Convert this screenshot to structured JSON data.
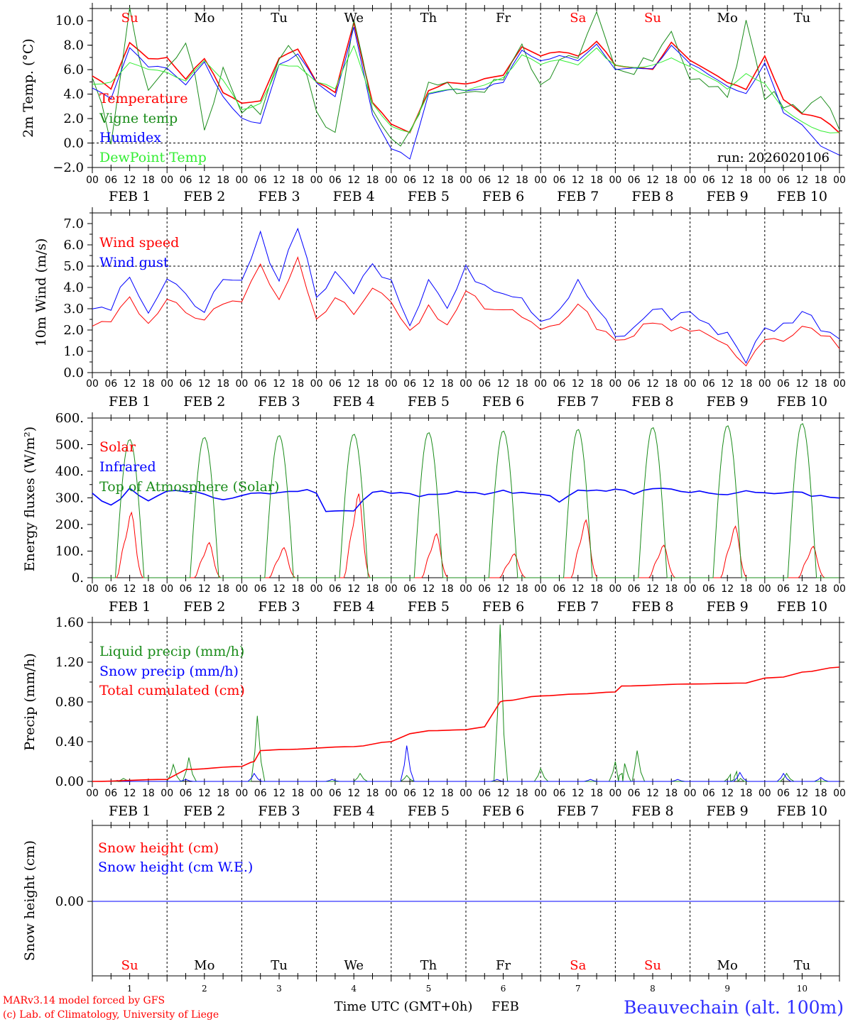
{
  "colors": {
    "red": "#ff0000",
    "green": "#1a8c1a",
    "blue": "#0000ff",
    "lime": "#33ee33",
    "axis": "#000000",
    "grid": "#000000",
    "title": "#3030ff"
  },
  "days": {
    "names": [
      "Su",
      "Mo",
      "Tu",
      "We",
      "Th",
      "Fr",
      "Sa",
      "Su",
      "Mo",
      "Tu"
    ],
    "weekend": [
      true,
      false,
      false,
      false,
      false,
      false,
      true,
      true,
      false,
      false
    ],
    "dates": [
      "FEB  1",
      "FEB  2",
      "FEB  3",
      "FEB  4",
      "FEB  5",
      "FEB  6",
      "FEB  7",
      "FEB  8",
      "FEB  9",
      "FEB 10"
    ],
    "numbers": [
      "1",
      "2",
      "3",
      "4",
      "5",
      "6",
      "7",
      "8",
      "9",
      "10"
    ],
    "hour_ticks": [
      "00",
      "06",
      "12",
      "18"
    ],
    "last_tick": "00"
  },
  "footer": {
    "credit_line1": "MARv3.14 model forced by GFS",
    "credit_line2": "(c) Lab. of Climatology, University of Liege",
    "xlabel": "Time UTC (GMT+0h)",
    "xunit": "FEB",
    "station": "Beauvechain (alt. 100m)"
  },
  "chart_data": [
    {
      "id": "temp",
      "type": "line",
      "ylabel": "2m Temp. (°C)",
      "ylim": [
        -2.0,
        11.0
      ],
      "yticks": [
        -2.0,
        0.0,
        2.0,
        4.0,
        6.0,
        8.0,
        10.0
      ],
      "ytick_labels": [
        "−2.0",
        "0.0",
        "2.0",
        "4.0",
        "6.0",
        "8.0",
        "10.0"
      ],
      "dashed_y": 0.0,
      "annotation": "run: 2026020106",
      "x_unit": "hours since FEB 1 00 UTC",
      "series": [
        {
          "name": "Temperature",
          "color": "red",
          "x": [
            0,
            6,
            12,
            18,
            24,
            30,
            36,
            42,
            48,
            54,
            60,
            66,
            72,
            78,
            84,
            90,
            96,
            102,
            108,
            114,
            120,
            126,
            132,
            138,
            144,
            150,
            156,
            162,
            168,
            174,
            180,
            186,
            192,
            198,
            204,
            210,
            216,
            222,
            228,
            234,
            240
          ],
          "values": [
            5.5,
            4.4,
            8.2,
            7.0,
            6.9,
            5.3,
            6.9,
            4.2,
            3.2,
            3.5,
            7.0,
            7.6,
            5.0,
            4.1,
            9.8,
            3.3,
            1.5,
            0.8,
            4.2,
            4.9,
            4.9,
            5.2,
            5.6,
            7.9,
            7.1,
            7.5,
            7.1,
            8.3,
            6.4,
            6.2,
            6.1,
            8.2,
            6.7,
            5.9,
            4.9,
            4.4,
            7.2,
            3.5,
            2.4,
            2.1,
            0.9
          ]
        },
        {
          "name": "Vigne temp",
          "color": "green",
          "x": [
            0,
            6,
            12,
            18,
            24,
            30,
            36,
            42,
            48,
            54,
            60,
            66,
            72,
            78,
            84,
            90,
            96,
            102,
            108,
            114,
            120,
            126,
            132,
            138,
            144,
            150,
            156,
            162,
            168,
            174,
            180,
            186,
            192,
            198,
            204,
            210,
            216,
            222,
            228,
            234,
            240
          ],
          "values": [
            4.8,
            0.5,
            10.5,
            4.5,
            6.0,
            8.7,
            1.2,
            6.2,
            3.0,
            2.6,
            7.5,
            7.4,
            2.7,
            0.8,
            9.8,
            3.3,
            0.5,
            0.3,
            4.8,
            4.4,
            4.3,
            4.3,
            5.3,
            8.5,
            4.5,
            7.2,
            6.5,
            10.2,
            5.8,
            5.6,
            7.0,
            9.6,
            5.0,
            5.0,
            3.1,
            10.0,
            4.2,
            3.0,
            2.4,
            4.4,
            0.6
          ]
        },
        {
          "name": "Humidex",
          "color": "blue",
          "x": [
            0,
            6,
            12,
            18,
            24,
            30,
            36,
            42,
            48,
            54,
            60,
            66,
            72,
            78,
            84,
            90,
            96,
            102,
            108,
            114,
            120,
            126,
            132,
            138,
            144,
            150,
            156,
            162,
            168,
            174,
            180,
            186,
            192,
            198,
            204,
            210,
            216,
            222,
            228,
            234,
            240
          ],
          "values": [
            4.5,
            3.7,
            7.8,
            6.3,
            6.1,
            4.8,
            6.6,
            3.8,
            2.0,
            1.6,
            6.5,
            7.2,
            5.0,
            3.7,
            9.5,
            2.3,
            -0.4,
            -1.3,
            4.0,
            4.4,
            4.3,
            4.5,
            5.0,
            7.6,
            6.7,
            7.1,
            6.8,
            8.1,
            6.1,
            6.1,
            6.0,
            8.0,
            6.5,
            5.6,
            4.7,
            4.0,
            6.6,
            2.4,
            1.4,
            -0.3,
            -1.0
          ]
        },
        {
          "name": "DewPoint Temp",
          "color": "lime",
          "x": [
            0,
            6,
            12,
            18,
            24,
            30,
            36,
            42,
            48,
            54,
            60,
            66,
            72,
            78,
            84,
            90,
            96,
            102,
            108,
            114,
            120,
            126,
            132,
            138,
            144,
            150,
            156,
            162,
            168,
            174,
            180,
            186,
            192,
            198,
            204,
            210,
            216,
            222,
            228,
            234,
            240
          ],
          "values": [
            4.8,
            4.9,
            6.6,
            6.0,
            5.8,
            5.0,
            6.8,
            5.2,
            2.8,
            3.2,
            6.4,
            6.3,
            5.0,
            4.5,
            8.0,
            3.2,
            1.3,
            0.8,
            4.0,
            4.4,
            4.3,
            4.8,
            5.3,
            7.2,
            6.5,
            6.8,
            6.4,
            7.7,
            6.3,
            6.2,
            6.3,
            7.0,
            6.2,
            5.4,
            4.5,
            5.6,
            4.8,
            2.8,
            1.8,
            1.0,
            0.8
          ]
        }
      ]
    },
    {
      "id": "wind",
      "type": "line",
      "ylabel": "10m Wind (m/s)",
      "ylim": [
        0.0,
        7.5
      ],
      "yticks": [
        0.0,
        1.0,
        2.0,
        3.0,
        4.0,
        5.0,
        6.0,
        7.0
      ],
      "ytick_labels": [
        "0.0",
        "1.0",
        "2.0",
        "3.0",
        "4.0",
        "5.0",
        "6.0",
        "7.0"
      ],
      "dashed_y": 5.0,
      "x_unit": "hours since FEB 1 00 UTC",
      "series": [
        {
          "name": "Wind speed",
          "color": "red",
          "x": [
            0,
            6,
            12,
            18,
            24,
            30,
            36,
            42,
            48,
            54,
            60,
            66,
            72,
            78,
            84,
            90,
            96,
            102,
            108,
            114,
            120,
            126,
            132,
            138,
            144,
            150,
            156,
            162,
            168,
            174,
            180,
            186,
            192,
            198,
            204,
            210,
            216,
            222,
            228,
            234,
            240
          ],
          "values": [
            2.2,
            2.5,
            3.7,
            2.2,
            3.3,
            2.9,
            2.5,
            3.3,
            3.4,
            5.0,
            3.3,
            5.4,
            2.7,
            3.4,
            2.8,
            3.9,
            3.3,
            1.8,
            3.0,
            2.3,
            3.7,
            3.1,
            2.9,
            2.7,
            1.9,
            2.2,
            3.2,
            2.2,
            1.4,
            1.9,
            2.4,
            2.0,
            2.1,
            1.6,
            1.2,
            0.5,
            1.7,
            1.6,
            2.3,
            1.8,
            1.3
          ]
        },
        {
          "name": "Wind gust",
          "color": "blue",
          "x": [
            0,
            6,
            12,
            18,
            24,
            30,
            36,
            42,
            48,
            54,
            60,
            66,
            72,
            78,
            84,
            90,
            96,
            102,
            108,
            114,
            120,
            126,
            132,
            138,
            144,
            150,
            156,
            162,
            168,
            174,
            180,
            186,
            192,
            198,
            204,
            210,
            216,
            222,
            228,
            234,
            240
          ],
          "values": [
            3.0,
            3.2,
            4.7,
            2.9,
            4.3,
            3.5,
            3.1,
            4.1,
            4.2,
            6.4,
            4.4,
            7.0,
            3.6,
            4.5,
            3.9,
            5.0,
            4.5,
            2.3,
            4.5,
            3.0,
            4.8,
            4.2,
            3.9,
            3.6,
            2.5,
            3.0,
            4.2,
            3.0,
            1.6,
            2.0,
            3.1,
            2.6,
            2.9,
            2.1,
            1.9,
            0.6,
            2.0,
            2.2,
            2.9,
            2.2,
            1.7
          ]
        }
      ]
    },
    {
      "id": "energy",
      "type": "line",
      "ylabel": "Energy fluxes (W/m²)",
      "ylim": [
        0,
        600
      ],
      "yticks": [
        0,
        100,
        200,
        300,
        400,
        500,
        600
      ],
      "ytick_labels": [
        "0.",
        "100.",
        "200.",
        "300.",
        "400.",
        "500.",
        "600."
      ],
      "x_unit": "hours since FEB 1 00 UTC",
      "series": [
        {
          "name": "Solar",
          "color": "red",
          "peaks_x": [
            12,
            37,
            61,
            85,
            110,
            135,
            158,
            183,
            206,
            231
          ],
          "peaks": [
            260,
            140,
            120,
            335,
            175,
            95,
            230,
            130,
            205,
            125
          ]
        },
        {
          "name": "Infrared",
          "color": "blue",
          "x": [
            0,
            6,
            12,
            18,
            24,
            30,
            36,
            42,
            48,
            54,
            60,
            66,
            72,
            75,
            84,
            90,
            96,
            102,
            108,
            114,
            120,
            126,
            132,
            138,
            144,
            150,
            156,
            162,
            168,
            174,
            180,
            186,
            192,
            198,
            204,
            210,
            216,
            222,
            228,
            234,
            240
          ],
          "values": [
            320,
            270,
            330,
            290,
            325,
            328,
            320,
            290,
            315,
            318,
            320,
            330,
            320,
            255,
            250,
            320,
            318,
            312,
            310,
            320,
            325,
            318,
            322,
            315,
            320,
            290,
            330,
            325,
            328,
            320,
            330,
            332,
            325,
            320,
            310,
            320,
            315,
            320,
            315,
            310,
            305
          ]
        },
        {
          "name": "Top of Atmosphere (Solar)",
          "color": "green",
          "peaks_x": [
            12,
            36,
            60,
            84,
            108,
            132,
            156,
            180,
            204,
            228
          ],
          "peaks": [
            520,
            528,
            535,
            540,
            546,
            552,
            558,
            565,
            572,
            580
          ]
        }
      ]
    },
    {
      "id": "precip",
      "type": "line",
      "ylabel": "Precip (mm/h)",
      "ylim": [
        0.0,
        1.6
      ],
      "yticks": [
        0.0,
        0.4,
        0.8,
        1.2,
        1.6
      ],
      "ytick_labels": [
        "0.00",
        "0.40",
        "0.80",
        "1.20",
        "1.60"
      ],
      "x_unit": "hours since FEB 1 00 UTC",
      "series": [
        {
          "name": "Liquid precip (mm/h)",
          "color": "green",
          "spikes_x": [
            10,
            26,
            31,
            53,
            86,
            101,
            131,
            144,
            168,
            171,
            175,
            205,
            207,
            223
          ],
          "spikes": [
            0.03,
            0.17,
            0.24,
            0.66,
            0.08,
            0.06,
            1.58,
            0.13,
            0.2,
            0.18,
            0.31,
            0.07,
            0.1,
            0.08
          ]
        },
        {
          "name": "Snow precip (mm/h)",
          "color": "blue",
          "spikes_x": [
            8,
            30,
            52,
            77,
            101,
            130,
            160,
            188,
            208,
            222,
            234
          ],
          "spikes": [
            0.01,
            0.02,
            0.08,
            0.02,
            0.36,
            0.02,
            0.02,
            0.02,
            0.09,
            0.08,
            0.04
          ]
        },
        {
          "name": "Total cumulated (cm)",
          "color": "red",
          "x": [
            0,
            24,
            30,
            48,
            52,
            54,
            60,
            84,
            96,
            102,
            108,
            120,
            126,
            129,
            131,
            132,
            144,
            156,
            168,
            170,
            192,
            210,
            216,
            222,
            228,
            240
          ],
          "values": [
            0.0,
            0.02,
            0.12,
            0.15,
            0.2,
            0.31,
            0.32,
            0.35,
            0.4,
            0.48,
            0.51,
            0.52,
            0.55,
            0.7,
            0.8,
            0.81,
            0.86,
            0.88,
            0.9,
            0.96,
            0.98,
            0.99,
            1.04,
            1.05,
            1.1,
            1.15
          ]
        }
      ]
    },
    {
      "id": "snow",
      "type": "line",
      "ylabel": "Snow height (cm)",
      "yticks": [
        0.0
      ],
      "ytick_labels": [
        "0.00"
      ],
      "x_unit": "hours since FEB 1 00 UTC",
      "series": [
        {
          "name": "Snow height (cm)",
          "color": "red",
          "x": [
            0,
            240
          ],
          "values": [
            0.0,
            0.0
          ]
        },
        {
          "name": "Snow height (cm W.E.)",
          "color": "blue",
          "x": [
            0,
            240
          ],
          "values": [
            0.0,
            0.0
          ]
        }
      ]
    }
  ]
}
